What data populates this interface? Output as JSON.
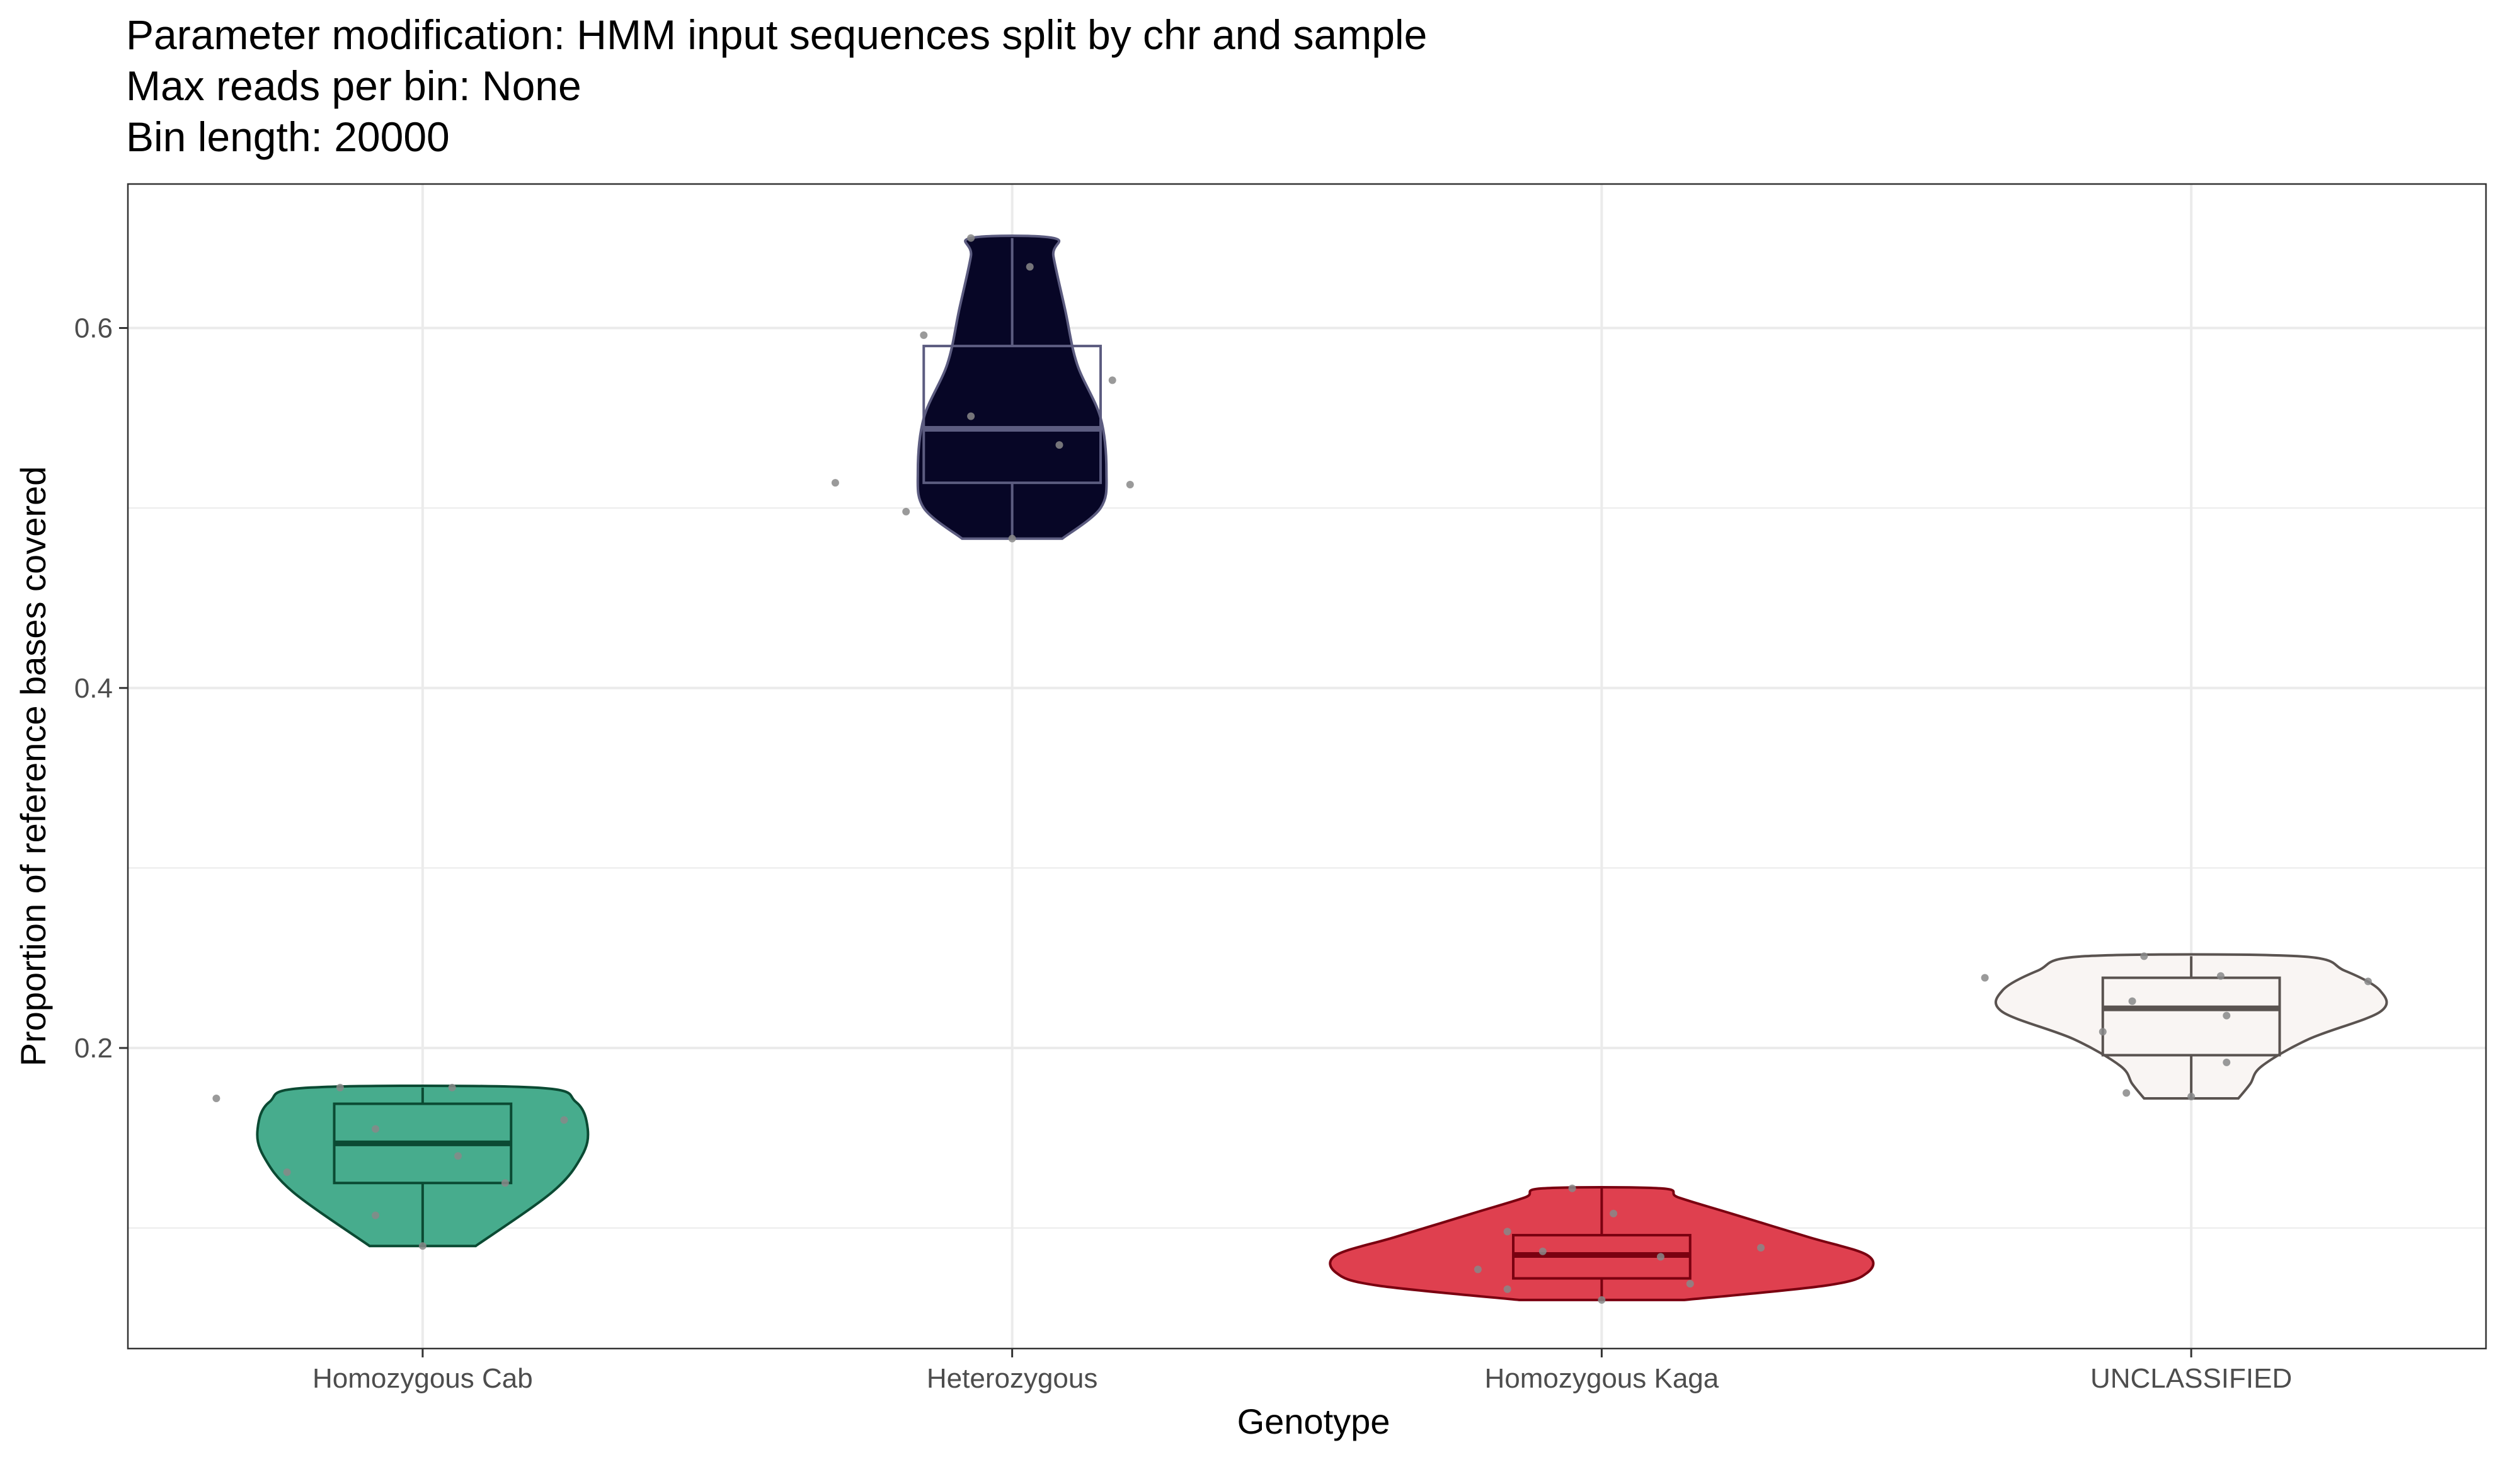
{
  "chart_data": {
    "type": "violin",
    "title_lines": [
      "Parameter modification: HMM input sequences split by chr and sample",
      "Max reads per bin: None",
      "Bin length: 20000"
    ],
    "xlabel": "Genotype",
    "ylabel": "Proportion of reference bases covered",
    "ylim": [
      0.033,
      0.68
    ],
    "yticks": [
      0.2,
      0.4,
      0.6
    ],
    "ytick_labels": [
      "0.2",
      "0.4",
      "0.6"
    ],
    "categories": [
      "Homozygous Cab",
      "Heterozygous",
      "Homozygous Kaga",
      "UNCLASSIFIED"
    ],
    "grid": true,
    "groups": [
      {
        "name": "Homozygous Cab",
        "fill": "#43aa8b",
        "line": "#0b4a33",
        "box": {
          "min": 0.09,
          "q1": 0.125,
          "median": 0.147,
          "q3": 0.169,
          "max": 0.178
        },
        "violin": [
          [
            0.09,
            0.09
          ],
          [
            0.12,
            0.22
          ],
          [
            0.14,
            0.27
          ],
          [
            0.155,
            0.28
          ],
          [
            0.17,
            0.26
          ],
          [
            0.178,
            0.19
          ]
        ],
        "points": [
          {
            "dx": -0.35,
            "y": 0.172
          },
          {
            "dx": -0.23,
            "y": 0.131
          },
          {
            "dx": -0.14,
            "y": 0.178
          },
          {
            "dx": -0.08,
            "y": 0.155
          },
          {
            "dx": -0.08,
            "y": 0.107
          },
          {
            "dx": 0.0,
            "y": 0.09
          },
          {
            "dx": 0.05,
            "y": 0.178
          },
          {
            "dx": 0.06,
            "y": 0.14
          },
          {
            "dx": 0.14,
            "y": 0.125
          },
          {
            "dx": 0.24,
            "y": 0.16
          }
        ]
      },
      {
        "name": "Heterozygous",
        "fill": "#020122",
        "line": "#5c5c80",
        "box": {
          "min": 0.483,
          "q1": 0.514,
          "median": 0.544,
          "q3": 0.59,
          "max": 0.65
        },
        "violin": [
          [
            0.483,
            0.085
          ],
          [
            0.5,
            0.15
          ],
          [
            0.52,
            0.16
          ],
          [
            0.55,
            0.15
          ],
          [
            0.58,
            0.11
          ],
          [
            0.61,
            0.09
          ],
          [
            0.64,
            0.07
          ],
          [
            0.65,
            0.07
          ]
        ],
        "points": [
          {
            "dx": -0.3,
            "y": 0.514
          },
          {
            "dx": -0.18,
            "y": 0.498
          },
          {
            "dx": -0.15,
            "y": 0.596
          },
          {
            "dx": -0.07,
            "y": 0.65
          },
          {
            "dx": -0.07,
            "y": 0.551
          },
          {
            "dx": 0.0,
            "y": 0.483
          },
          {
            "dx": 0.03,
            "y": 0.634
          },
          {
            "dx": 0.08,
            "y": 0.535
          },
          {
            "dx": 0.17,
            "y": 0.571
          },
          {
            "dx": 0.2,
            "y": 0.513
          }
        ]
      },
      {
        "name": "Homozygous Kaga",
        "fill": "#de3c4b",
        "line": "#7a0010",
        "box": {
          "min": 0.06,
          "q1": 0.072,
          "median": 0.085,
          "q3": 0.096,
          "max": 0.122
        },
        "violin": [
          [
            0.06,
            0.14
          ],
          [
            0.068,
            0.38
          ],
          [
            0.075,
            0.45
          ],
          [
            0.085,
            0.45
          ],
          [
            0.095,
            0.35
          ],
          [
            0.108,
            0.22
          ],
          [
            0.117,
            0.13
          ],
          [
            0.122,
            0.1
          ]
        ],
        "points": [
          {
            "dx": -0.21,
            "y": 0.077
          },
          {
            "dx": -0.16,
            "y": 0.098
          },
          {
            "dx": -0.16,
            "y": 0.066
          },
          {
            "dx": -0.1,
            "y": 0.087
          },
          {
            "dx": -0.05,
            "y": 0.122
          },
          {
            "dx": 0.0,
            "y": 0.06
          },
          {
            "dx": 0.02,
            "y": 0.108
          },
          {
            "dx": 0.1,
            "y": 0.084
          },
          {
            "dx": 0.15,
            "y": 0.069
          },
          {
            "dx": 0.27,
            "y": 0.089
          }
        ]
      },
      {
        "name": "UNCLASSIFIED",
        "fill": "#f9f5f3",
        "line": "#5a5350",
        "box": {
          "min": 0.172,
          "q1": 0.196,
          "median": 0.222,
          "q3": 0.239,
          "max": 0.251
        },
        "violin": [
          [
            0.172,
            0.08
          ],
          [
            0.18,
            0.1
          ],
          [
            0.19,
            0.12
          ],
          [
            0.205,
            0.2
          ],
          [
            0.22,
            0.32
          ],
          [
            0.232,
            0.32
          ],
          [
            0.243,
            0.26
          ],
          [
            0.251,
            0.18
          ]
        ],
        "points": [
          {
            "dx": -0.35,
            "y": 0.239
          },
          {
            "dx": -0.15,
            "y": 0.209
          },
          {
            "dx": -0.11,
            "y": 0.175
          },
          {
            "dx": -0.08,
            "y": 0.251
          },
          {
            "dx": -0.1,
            "y": 0.226
          },
          {
            "dx": 0.0,
            "y": 0.173
          },
          {
            "dx": 0.05,
            "y": 0.24
          },
          {
            "dx": 0.06,
            "y": 0.218
          },
          {
            "dx": 0.06,
            "y": 0.192
          },
          {
            "dx": 0.3,
            "y": 0.237
          }
        ]
      }
    ],
    "point_color": "#888888"
  }
}
